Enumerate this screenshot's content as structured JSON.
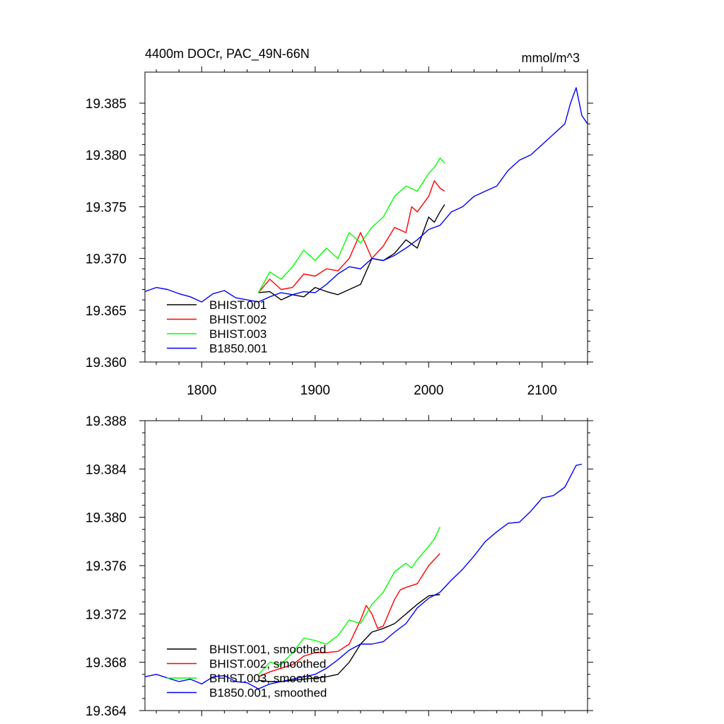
{
  "chart_data": [
    {
      "type": "line",
      "title": "4400m DOCr, PAC_49N-66N",
      "units": "mmol/m^3",
      "xlim": [
        1750,
        2140
      ],
      "ylim": [
        19.36,
        19.388
      ],
      "xticks": [
        1800,
        1900,
        2000,
        2100
      ],
      "xtick_labels": [
        "1800",
        "1900",
        "2000",
        "2100"
      ],
      "yticks": [
        19.36,
        19.365,
        19.37,
        19.375,
        19.38,
        19.385
      ],
      "ytick_labels": [
        "19.360",
        "19.365",
        "19.370",
        "19.375",
        "19.380",
        "19.385"
      ],
      "legend_position": "lower-left",
      "series": [
        {
          "name": "BHIST.001",
          "color": "#000000",
          "x": [
            1850,
            1860,
            1870,
            1880,
            1890,
            1900,
            1910,
            1920,
            1930,
            1940,
            1950,
            1960,
            1970,
            1980,
            1990,
            2000,
            2005,
            2010,
            2014
          ],
          "y": [
            19.3667,
            19.3668,
            19.366,
            19.3665,
            19.3663,
            19.3672,
            19.3668,
            19.3665,
            19.367,
            19.3675,
            19.37,
            19.3698,
            19.3705,
            19.3718,
            19.371,
            19.374,
            19.3735,
            19.3745,
            19.3752
          ]
        },
        {
          "name": "BHIST.002",
          "color": "#ff0000",
          "x": [
            1850,
            1860,
            1870,
            1880,
            1890,
            1900,
            1910,
            1920,
            1930,
            1940,
            1950,
            1960,
            1970,
            1980,
            1985,
            1990,
            2000,
            2005,
            2010,
            2014
          ],
          "y": [
            19.3667,
            19.368,
            19.367,
            19.3672,
            19.3685,
            19.3683,
            19.369,
            19.3688,
            19.37,
            19.3725,
            19.37,
            19.3712,
            19.373,
            19.3725,
            19.375,
            19.3745,
            19.376,
            19.3775,
            19.3768,
            19.3765
          ]
        },
        {
          "name": "BHIST.003",
          "color": "#00ff00",
          "x": [
            1850,
            1860,
            1870,
            1880,
            1890,
            1900,
            1910,
            1920,
            1930,
            1940,
            1950,
            1960,
            1970,
            1980,
            1990,
            2000,
            2005,
            2010,
            2014
          ],
          "y": [
            19.3667,
            19.3687,
            19.368,
            19.3692,
            19.3708,
            19.3698,
            19.371,
            19.37,
            19.3725,
            19.3715,
            19.373,
            19.374,
            19.376,
            19.377,
            19.3765,
            19.3782,
            19.3788,
            19.3797,
            19.3792
          ]
        },
        {
          "name": "B1850.001",
          "color": "#0000ff",
          "x": [
            1750,
            1760,
            1770,
            1780,
            1790,
            1800,
            1810,
            1820,
            1830,
            1840,
            1850,
            1860,
            1870,
            1880,
            1890,
            1900,
            1910,
            1920,
            1930,
            1940,
            1950,
            1960,
            1970,
            1980,
            1990,
            2000,
            2010,
            2020,
            2030,
            2040,
            2050,
            2060,
            2070,
            2080,
            2090,
            2100,
            2110,
            2120,
            2125,
            2130,
            2135,
            2140
          ],
          "y": [
            19.3668,
            19.3672,
            19.367,
            19.3666,
            19.3663,
            19.3658,
            19.3666,
            19.3669,
            19.3662,
            19.366,
            19.3658,
            19.3663,
            19.3667,
            19.3665,
            19.3668,
            19.3667,
            19.3675,
            19.3685,
            19.3692,
            19.369,
            19.37,
            19.3698,
            19.3703,
            19.371,
            19.3718,
            19.3728,
            19.3732,
            19.3745,
            19.375,
            19.376,
            19.3765,
            19.377,
            19.3785,
            19.3795,
            19.38,
            19.381,
            19.382,
            19.383,
            19.385,
            19.3865,
            19.3838,
            19.383
          ]
        }
      ]
    },
    {
      "type": "line",
      "xlim": [
        1750,
        2140
      ],
      "ylim": [
        19.364,
        19.388
      ],
      "xticks": [
        1800,
        1900,
        2000,
        2100
      ],
      "yticks": [
        19.364,
        19.368,
        19.372,
        19.376,
        19.38,
        19.384,
        19.388
      ],
      "ytick_labels": [
        "19.364",
        "19.368",
        "19.372",
        "19.376",
        "19.380",
        "19.384",
        "19.388"
      ],
      "legend_position": "lower-left",
      "series": [
        {
          "name": "BHIST.001, smoothed",
          "color": "#000000",
          "x": [
            1850,
            1860,
            1870,
            1880,
            1890,
            1900,
            1910,
            1920,
            1930,
            1940,
            1950,
            1960,
            1970,
            1980,
            1990,
            2000,
            2010
          ],
          "y": [
            19.3665,
            19.3664,
            19.3664,
            19.3665,
            19.3666,
            19.3667,
            19.3668,
            19.367,
            19.368,
            19.3695,
            19.3705,
            19.3708,
            19.3712,
            19.372,
            19.3728,
            19.3735,
            19.3736
          ]
        },
        {
          "name": "BHIST.002, smoothed",
          "color": "#ff0000",
          "x": [
            1850,
            1860,
            1870,
            1880,
            1890,
            1900,
            1910,
            1920,
            1930,
            1940,
            1945,
            1950,
            1955,
            1960,
            1970,
            1975,
            1980,
            1990,
            2000,
            2005,
            2010
          ],
          "y": [
            19.3668,
            19.3672,
            19.3675,
            19.3678,
            19.3685,
            19.3688,
            19.3688,
            19.3689,
            19.3695,
            19.3715,
            19.3727,
            19.372,
            19.3708,
            19.371,
            19.3732,
            19.374,
            19.3742,
            19.3745,
            19.376,
            19.3765,
            19.377
          ]
        },
        {
          "name": "BHIST.003, smoothed",
          "color": "#00ff00",
          "x": [
            1850,
            1860,
            1870,
            1880,
            1890,
            1900,
            1910,
            1920,
            1930,
            1940,
            1950,
            1960,
            1970,
            1980,
            1985,
            1990,
            2000,
            2005,
            2010
          ],
          "y": [
            19.367,
            19.368,
            19.3678,
            19.3688,
            19.37,
            19.3698,
            19.3695,
            19.3702,
            19.3715,
            19.3712,
            19.3728,
            19.3738,
            19.3755,
            19.3762,
            19.3758,
            19.3765,
            19.3776,
            19.3782,
            19.3792
          ]
        },
        {
          "name": "B1850.001, smoothed",
          "color": "#0000ff",
          "x": [
            1750,
            1760,
            1770,
            1780,
            1790,
            1800,
            1810,
            1820,
            1830,
            1840,
            1850,
            1860,
            1870,
            1880,
            1890,
            1900,
            1910,
            1920,
            1930,
            1940,
            1950,
            1960,
            1970,
            1980,
            1990,
            2000,
            2010,
            2020,
            2030,
            2040,
            2050,
            2060,
            2070,
            2080,
            2090,
            2100,
            2110,
            2120,
            2130,
            2135
          ],
          "y": [
            19.3668,
            19.367,
            19.3667,
            19.3664,
            19.3666,
            19.3662,
            19.3668,
            19.3669,
            19.3664,
            19.3663,
            19.3658,
            19.3662,
            19.3664,
            19.3666,
            19.3668,
            19.367,
            19.3675,
            19.3682,
            19.369,
            19.3695,
            19.3695,
            19.3697,
            19.3705,
            19.3712,
            19.3725,
            19.3733,
            19.3738,
            19.3748,
            19.3757,
            19.3768,
            19.378,
            19.3788,
            19.3795,
            19.3796,
            19.3805,
            19.3816,
            19.3818,
            19.3825,
            19.3843,
            19.3844
          ]
        }
      ]
    }
  ]
}
